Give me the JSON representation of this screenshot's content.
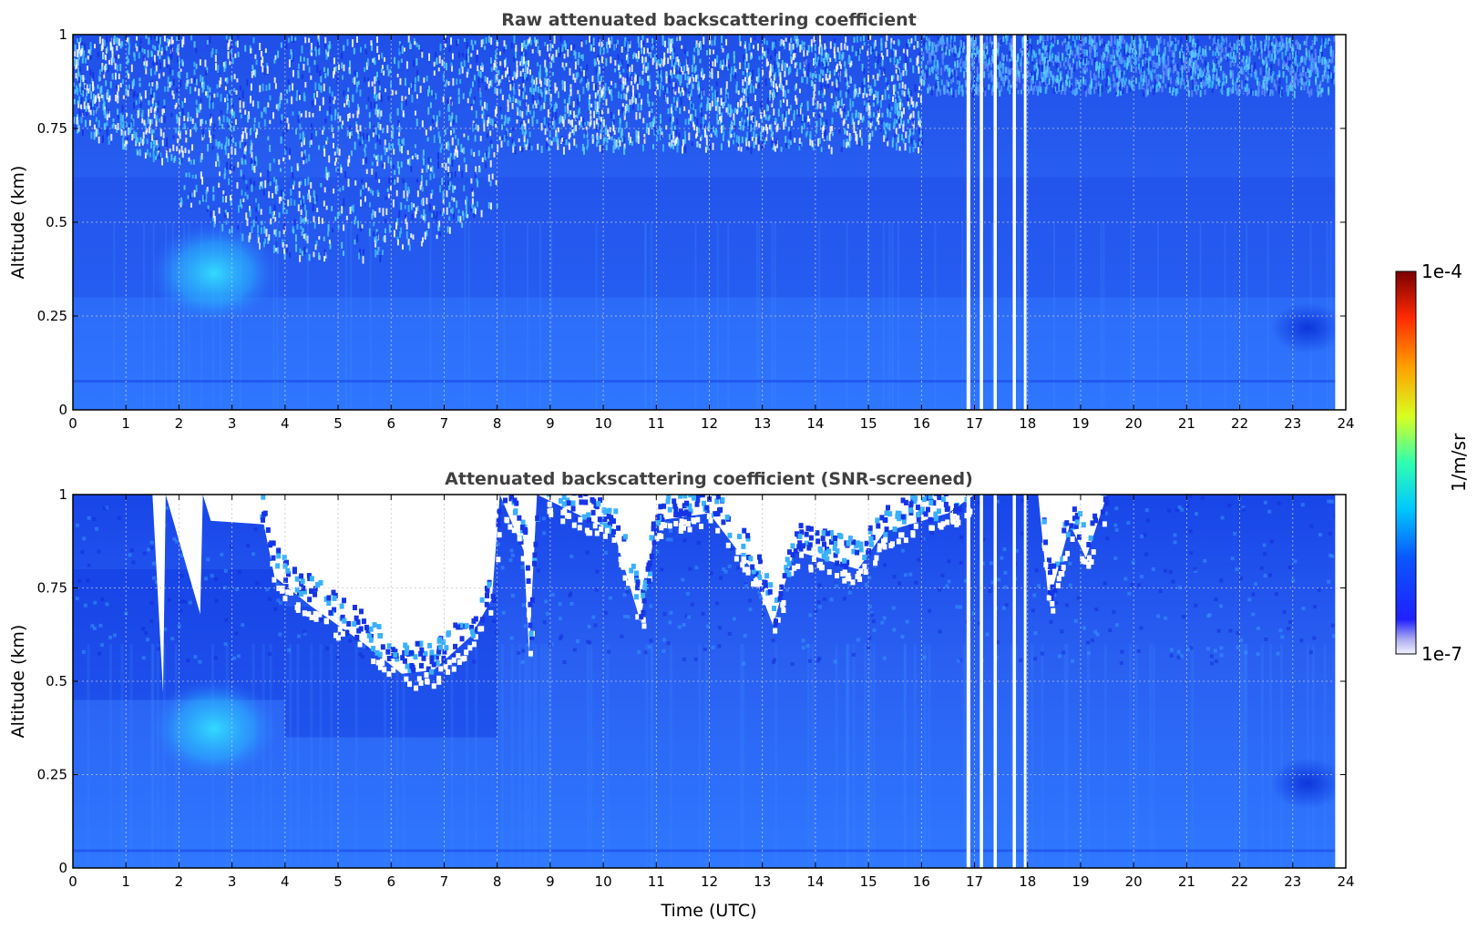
{
  "chart_data": [
    {
      "type": "heatmap",
      "title": "Raw attenuated backscattering coefficient",
      "xlabel": "",
      "ylabel": "Altitude (km)",
      "xlim": [
        0,
        24
      ],
      "ylim": [
        0,
        1
      ],
      "xticks": [
        "0",
        "1",
        "2",
        "3",
        "4",
        "5",
        "6",
        "7",
        "8",
        "9",
        "10",
        "11",
        "12",
        "13",
        "14",
        "15",
        "16",
        "17",
        "18",
        "19",
        "20",
        "21",
        "22",
        "23",
        "24"
      ],
      "yticks": [
        "0",
        "0.25",
        "0.5",
        "0.75",
        "1"
      ],
      "grid": true,
      "data_gaps_utc": [
        [
          16.85,
          16.92
        ],
        [
          17.1,
          17.16
        ],
        [
          17.36,
          17.42
        ],
        [
          17.72,
          17.78
        ],
        [
          17.93,
          17.98
        ],
        [
          23.8,
          24.0
        ]
      ],
      "features": [
        {
          "kind": "aerosol_plume",
          "x_range": [
            1.8,
            3.4
          ],
          "y_range": [
            0.22,
            0.55
          ]
        },
        {
          "kind": "elevated_signal",
          "x_range": [
            22.8,
            23.8
          ],
          "y_range": [
            0.15,
            0.3
          ]
        }
      ]
    },
    {
      "type": "heatmap",
      "title": "Attenuated backscattering coefficient (SNR-screened)",
      "xlabel": "Time (UTC)",
      "ylabel": "Altitude (km)",
      "xlim": [
        0,
        24
      ],
      "ylim": [
        0,
        1
      ],
      "xticks": [
        "0",
        "1",
        "2",
        "3",
        "4",
        "5",
        "6",
        "7",
        "8",
        "9",
        "10",
        "11",
        "12",
        "13",
        "14",
        "15",
        "16",
        "17",
        "18",
        "19",
        "20",
        "21",
        "22",
        "23",
        "24"
      ],
      "yticks": [
        "0",
        "0.25",
        "0.5",
        "0.75",
        "1"
      ],
      "grid": true,
      "data_gaps_utc": [
        [
          16.85,
          16.92
        ],
        [
          17.1,
          17.16
        ],
        [
          17.36,
          17.42
        ],
        [
          17.72,
          17.78
        ],
        [
          17.93,
          17.98
        ],
        [
          23.8,
          24.0
        ]
      ],
      "screened_out_profile_km": [
        [
          0,
          1.0
        ],
        [
          1.5,
          1.0
        ],
        [
          1.7,
          0.47
        ],
        [
          1.75,
          1.0
        ],
        [
          2.4,
          0.68
        ],
        [
          2.45,
          1.0
        ],
        [
          2.6,
          0.93
        ],
        [
          3.6,
          0.92
        ],
        [
          3.8,
          0.78
        ],
        [
          4.5,
          0.7
        ],
        [
          5.5,
          0.6
        ],
        [
          6.2,
          0.52
        ],
        [
          6.8,
          0.53
        ],
        [
          7.5,
          0.62
        ],
        [
          7.9,
          0.72
        ],
        [
          8.05,
          1.0
        ],
        [
          8.5,
          0.85
        ],
        [
          8.6,
          0.58
        ],
        [
          8.75,
          1.0
        ],
        [
          10.2,
          0.9
        ],
        [
          10.7,
          0.66
        ],
        [
          11.0,
          0.93
        ],
        [
          12.0,
          0.95
        ],
        [
          12.8,
          0.8
        ],
        [
          13.2,
          0.65
        ],
        [
          13.6,
          0.85
        ],
        [
          14.8,
          0.8
        ],
        [
          15.3,
          0.9
        ],
        [
          16.5,
          0.95
        ],
        [
          17.0,
          1.0
        ],
        [
          18.2,
          1.0
        ],
        [
          18.4,
          0.71
        ],
        [
          18.8,
          0.92
        ],
        [
          19.1,
          0.83
        ],
        [
          19.5,
          1.0
        ],
        [
          24,
          1.0
        ]
      ],
      "features": [
        {
          "kind": "aerosol_plume",
          "x_range": [
            1.8,
            3.4
          ],
          "y_range": [
            0.22,
            0.55
          ]
        },
        {
          "kind": "elevated_signal",
          "x_range": [
            22.8,
            23.8
          ],
          "y_range": [
            0.15,
            0.3
          ]
        }
      ]
    }
  ],
  "colorbar": {
    "label": "1/m/sr",
    "max_label": "1e-4",
    "min_label": "1e-7",
    "scale": "log",
    "colormap": "jet"
  },
  "colors": {
    "background": "#2f6df5",
    "title_text": "#404040",
    "grid": "#bfbfbf"
  }
}
